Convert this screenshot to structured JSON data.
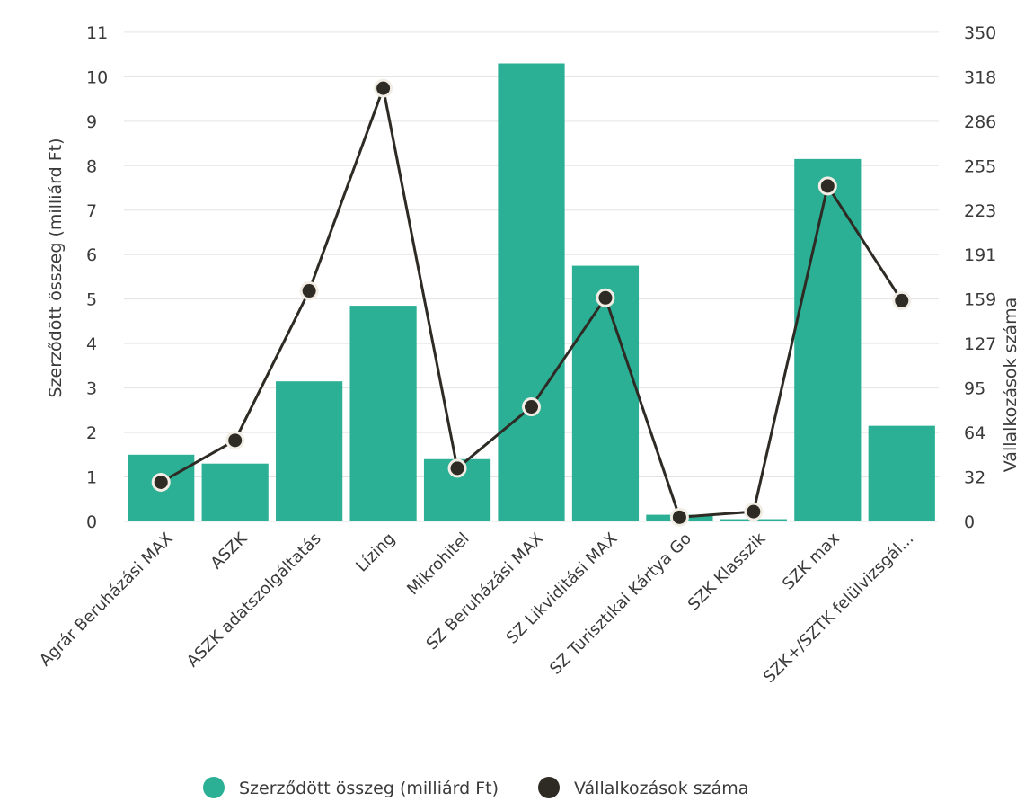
{
  "chart_data": {
    "type": "bar",
    "categories": [
      "Agrár Beruházási MAX",
      "ASZK",
      "ASZK adatszolgáltatás",
      "Lízing",
      "Mikrohitel",
      "SZ Beruházási MAX",
      "SZ Likviditási MAX",
      "SZ Turisztikai Kártya Go",
      "SZK Klasszik",
      "SZK max",
      "SZK+/SZTK felülvizsgál..."
    ],
    "series": [
      {
        "name": "Szerződött összeg (milliárd Ft)",
        "type": "bar",
        "axis": "left",
        "color": "#2bb096",
        "values": [
          1.5,
          1.3,
          3.15,
          4.85,
          1.4,
          10.3,
          5.75,
          0.15,
          0.05,
          8.15,
          2.15
        ]
      },
      {
        "name": "Vállalkozások száma",
        "type": "line",
        "axis": "right",
        "color": "#2e2a24",
        "values": [
          28,
          58,
          165,
          310,
          38,
          82,
          160,
          3,
          7,
          240,
          158
        ]
      }
    ],
    "left_axis": {
      "title": "Szerződött összeg (milliárd Ft)",
      "ticks": [
        "0",
        "1",
        "2",
        "3",
        "4",
        "5",
        "6",
        "7",
        "8",
        "9",
        "10",
        "11"
      ],
      "range": [
        0,
        11.2
      ]
    },
    "right_axis": {
      "title": "Vállalkozások száma",
      "ticks": [
        "0",
        "32",
        "64",
        "95",
        "127",
        "159",
        "191",
        "223",
        "255",
        "286",
        "318",
        "350"
      ],
      "range": [
        0,
        356.4
      ]
    },
    "legend": {
      "position": "bottom",
      "items": [
        "Szerződött összeg (milliárd Ft)",
        "Vállalkozások száma"
      ]
    },
    "grid": true
  }
}
